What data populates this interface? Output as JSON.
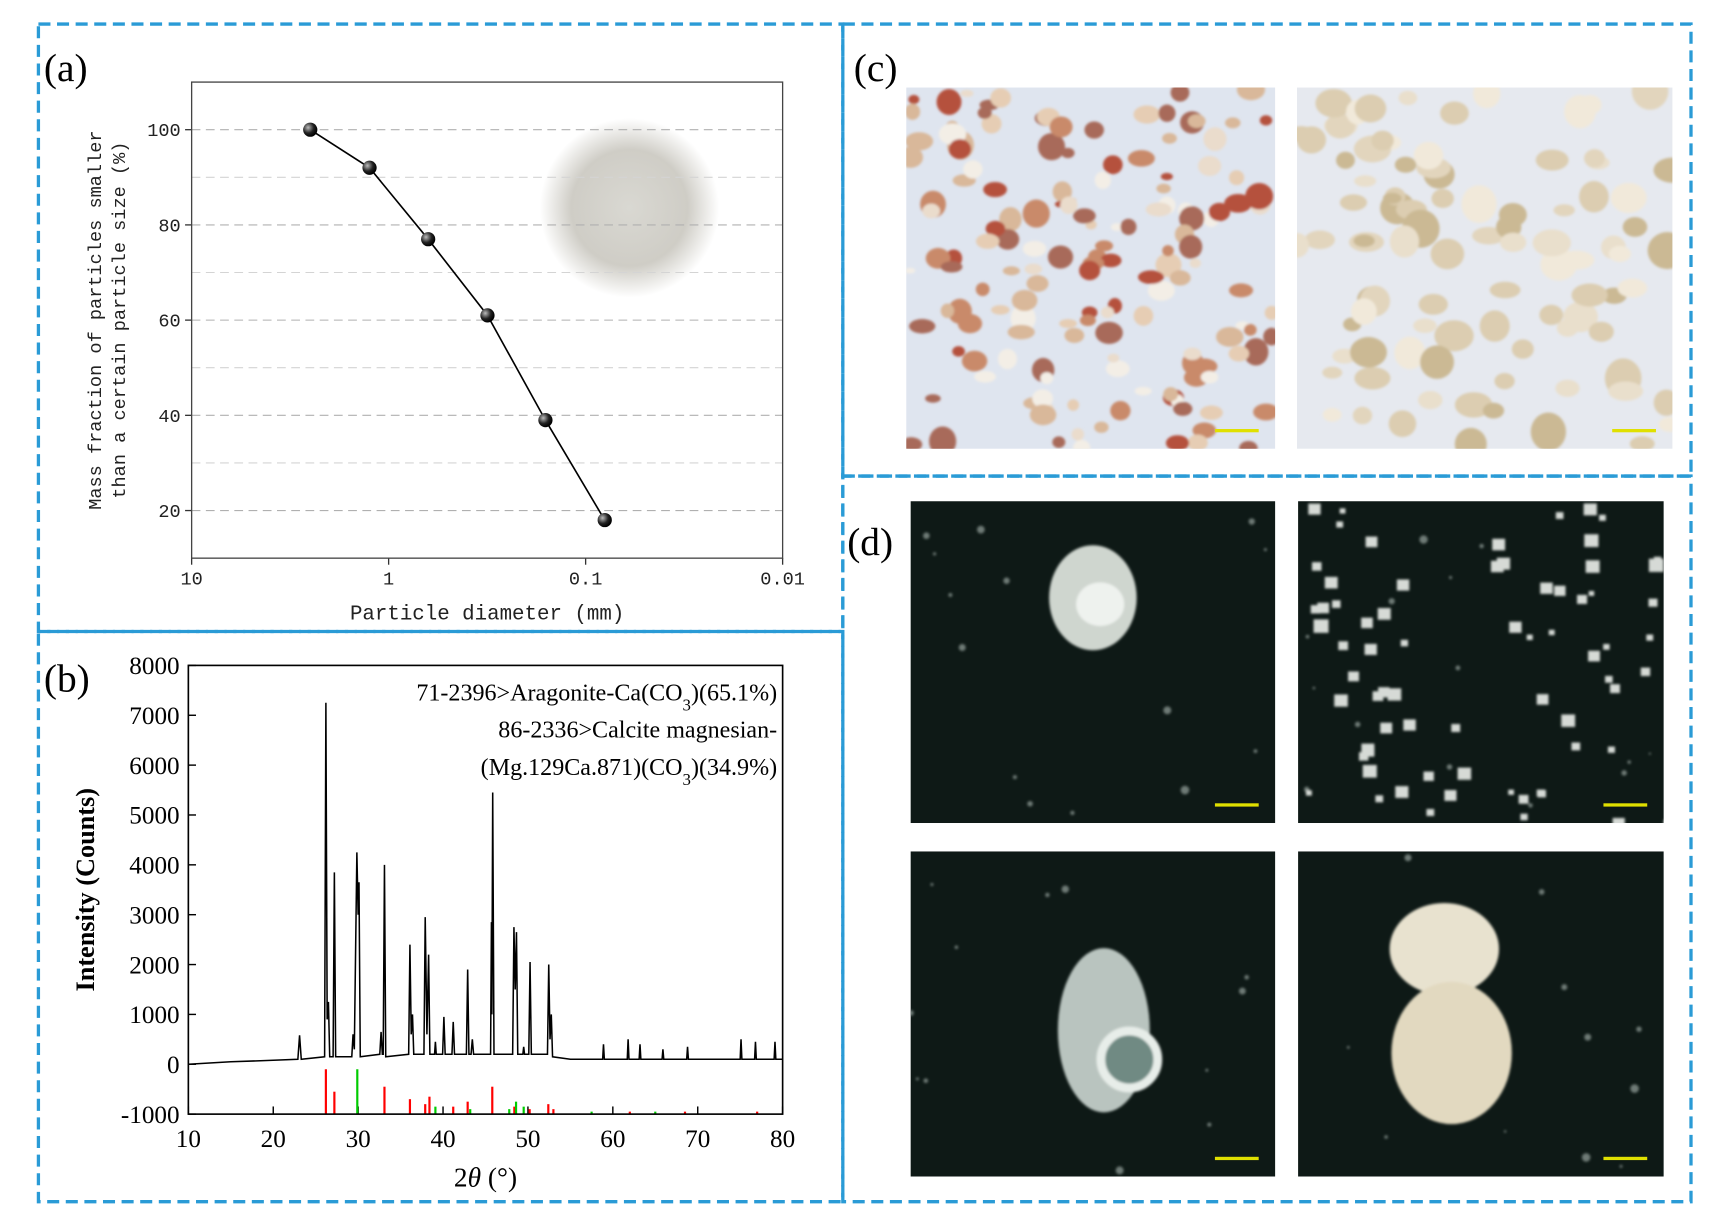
{
  "chart_data": [
    {
      "type": "line",
      "panel_label": "(a)",
      "xlabel": "Particle diameter (mm)",
      "ylabel": [
        "Mass fraction of particles smaller",
        "than a certain particle size (%)"
      ],
      "x": [
        2.5,
        1.25,
        0.63,
        0.315,
        0.16,
        0.08
      ],
      "values": [
        100,
        92,
        77,
        61,
        39,
        18
      ],
      "color": "#000000",
      "xscale": "log",
      "xlim": [
        10,
        0.01
      ],
      "xticks": [
        10,
        1,
        0.1,
        0.01
      ],
      "ylim": [
        10,
        110
      ],
      "yticks": [
        20,
        40,
        60,
        80,
        100
      ],
      "minor_grid": [
        30,
        50,
        70,
        90
      ],
      "grid": true
    },
    {
      "type": "line",
      "panel_label": "(b)",
      "xlabel": [
        {
          "text": "2"
        },
        {
          "text": "θ",
          "italic": true
        },
        {
          "text": " (°)"
        }
      ],
      "ylabel": "Intensity (Counts)",
      "annotations": [
        [
          {
            "text": "71-2396>Aragonite-Ca(CO"
          },
          {
            "text": "3",
            "sub": true
          },
          {
            "text": ")(65.1%)"
          }
        ],
        [
          {
            "text": "86-2336>Calcite magnesian-"
          }
        ],
        [
          {
            "text": "(Mg.129Ca.871)(CO"
          },
          {
            "text": "3",
            "sub": true
          },
          {
            "text": ")(34.9%)"
          }
        ]
      ],
      "color": "#000000",
      "x": [
        10,
        15,
        20,
        22.9,
        23.1,
        23.3,
        26.05,
        26.2,
        26.35,
        26.5,
        26.65,
        27.05,
        27.2,
        27.35,
        29.25,
        29.4,
        29.55,
        29.85,
        30.0,
        30.1,
        30.25,
        32.55,
        32.7,
        32.85,
        32.95,
        33.1,
        33.25,
        35.95,
        36.1,
        36.25,
        36.4,
        36.55,
        37.75,
        37.9,
        38.1,
        38.3,
        38.45,
        39.0,
        39.1,
        39.2,
        39.95,
        40.1,
        40.25,
        41.05,
        41.2,
        41.35,
        42.75,
        42.9,
        43.05,
        43.3,
        43.45,
        43.6,
        45.6,
        45.7,
        45.75,
        45.85,
        46.0,
        48.2,
        48.35,
        48.5,
        48.65,
        48.8,
        49.4,
        49.5,
        49.6,
        50.1,
        50.25,
        50.4,
        52.3,
        52.45,
        52.6,
        52.75,
        52.9,
        55,
        58.8,
        58.9,
        59.0,
        61.7,
        61.8,
        61.9,
        63.1,
        63.2,
        63.3,
        65.8,
        65.9,
        66.0,
        68.7,
        68.8,
        68.9,
        75.0,
        75.1,
        75.2,
        76.7,
        76.8,
        76.9,
        79.0,
        79.1,
        79.2,
        80
      ],
      "values": [
        0,
        50,
        80,
        100,
        580,
        100,
        150,
        7250,
        900,
        1250,
        150,
        150,
        3850,
        150,
        150,
        600,
        300,
        4250,
        3000,
        3650,
        150,
        200,
        650,
        200,
        200,
        4000,
        150,
        200,
        2400,
        600,
        1000,
        200,
        200,
        2950,
        600,
        2200,
        200,
        200,
        450,
        200,
        200,
        950,
        200,
        200,
        850,
        200,
        200,
        1900,
        200,
        200,
        500,
        200,
        200,
        2850,
        1000,
        5450,
        200,
        200,
        2750,
        1500,
        2650,
        200,
        200,
        350,
        200,
        200,
        2050,
        200,
        200,
        2000,
        500,
        1000,
        150,
        100,
        100,
        400,
        100,
        100,
        500,
        100,
        100,
        400,
        100,
        100,
        300,
        100,
        100,
        350,
        100,
        100,
        500,
        100,
        100,
        450,
        100,
        100,
        450,
        100,
        100
      ],
      "reference_series": [
        {
          "color": "#ff0000",
          "x": [
            26.2,
            27.2,
            33.1,
            36.1,
            37.9,
            38.4,
            41.2,
            42.9,
            45.8,
            48.4,
            50.2,
            52.4,
            53.0,
            62.0,
            68.5,
            77.0
          ],
          "values": [
            -100,
            -550,
            -450,
            -700,
            -800,
            -650,
            -850,
            -750,
            -450,
            -850,
            -900,
            -800,
            -900,
            -950,
            -950,
            -950
          ]
        },
        {
          "color": "#00cc00",
          "x": [
            29.9,
            39.1,
            43.2,
            47.8,
            48.6,
            49.5,
            57.5,
            65.0
          ],
          "values": [
            -100,
            -850,
            -900,
            -900,
            -750,
            -850,
            -950,
            -950
          ]
        }
      ],
      "xlim": [
        10,
        80
      ],
      "xticks": [
        10,
        20,
        30,
        40,
        50,
        60,
        70,
        80
      ],
      "ylim": [
        -1000,
        8000
      ],
      "yticks": [
        -1000,
        0,
        1000,
        2000,
        3000,
        4000,
        5000,
        6000,
        7000,
        8000
      ]
    }
  ],
  "panels": {
    "c": {
      "label": "(c)"
    },
    "d": {
      "label": "(d)"
    }
  }
}
